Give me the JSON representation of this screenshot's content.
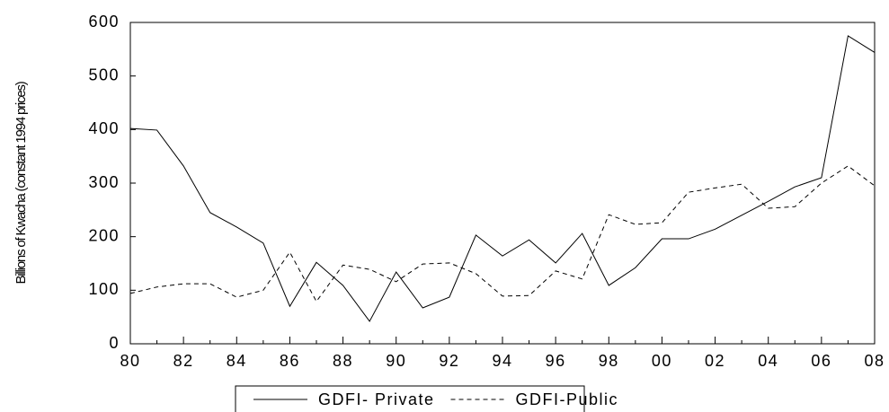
{
  "chart_data": {
    "type": "line",
    "y_label": "Billions of Kwacha (constant 1994 prices)",
    "categories": [
      "80",
      null,
      "82",
      null,
      "84",
      null,
      "86",
      null,
      "88",
      null,
      "90",
      null,
      "92",
      null,
      "94",
      null,
      "96",
      null,
      "98",
      null,
      "00",
      null,
      "02",
      null,
      "04",
      null,
      "06",
      null,
      "08"
    ],
    "series": [
      {
        "name": "GDFI- Private",
        "color": "#000000",
        "line_style": "solid",
        "values": [
          402,
          399,
          332,
          245,
          218,
          188,
          70,
          152,
          109,
          42,
          134,
          67,
          87,
          203,
          164,
          194,
          151,
          206,
          109,
          142,
          196,
          196,
          214,
          240,
          266,
          293,
          310,
          575,
          544
        ]
      },
      {
        "name": "GDFI-Public",
        "color": "#000000",
        "line_style": "dashed",
        "values": [
          94,
          106,
          112,
          112,
          87,
          100,
          171,
          79,
          147,
          139,
          116,
          149,
          151,
          131,
          89,
          90,
          136,
          121,
          241,
          223,
          226,
          283,
          291,
          298,
          253,
          256,
          300,
          332,
          295
        ]
      }
    ],
    "ylim": [
      0,
      600
    ],
    "yticks": [
      0,
      100,
      200,
      300,
      400,
      500,
      600
    ],
    "grid": false,
    "legend": "bottom"
  }
}
